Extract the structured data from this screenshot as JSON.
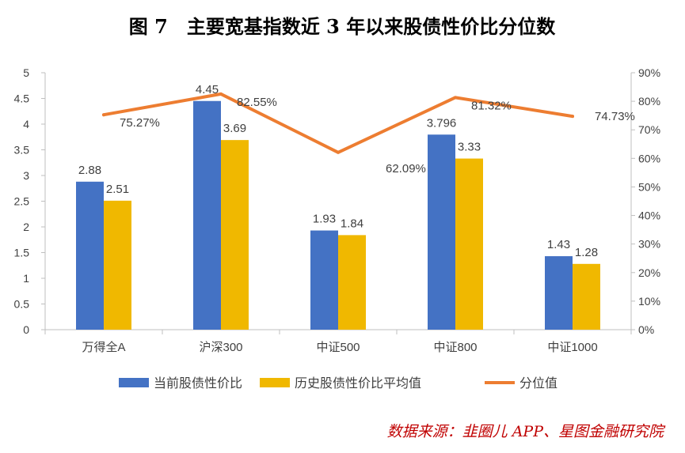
{
  "chart_data": {
    "type": "bar",
    "title": "图 7　主要宽基指数近 3 年以来股债性价比分位数",
    "categories": [
      "万得全A",
      "沪深300",
      "中证500",
      "中证800",
      "中证1000"
    ],
    "series": [
      {
        "name": "当前股债性价比",
        "kind": "bar",
        "axis": "left",
        "color": "#4472C4",
        "values": [
          2.88,
          4.45,
          1.93,
          3.796,
          1.43
        ],
        "labels": [
          "2.88",
          "4.45",
          "1.93",
          "3.796",
          "1.43"
        ]
      },
      {
        "name": "历史股债性价比平均值",
        "kind": "bar",
        "axis": "left",
        "color": "#F0B800",
        "values": [
          2.51,
          3.69,
          1.84,
          3.33,
          1.28
        ],
        "labels": [
          "2.51",
          "3.69",
          "1.84",
          "3.33",
          "1.28"
        ]
      },
      {
        "name": "分位值",
        "kind": "line",
        "axis": "right",
        "color": "#ED7D31",
        "values": [
          75.27,
          82.55,
          62.09,
          81.32,
          74.73
        ],
        "labels": [
          "75.27%",
          "82.55%",
          "62.09%",
          "81.32%",
          "74.73%"
        ]
      }
    ],
    "y_left": {
      "range": [
        0,
        5
      ],
      "ticks": [
        "0",
        "0.5",
        "1",
        "1.5",
        "2",
        "2.5",
        "3",
        "3.5",
        "4",
        "4.5",
        "5"
      ]
    },
    "y_right": {
      "range": [
        0,
        90
      ],
      "ticks": [
        "0%",
        "10%",
        "20%",
        "30%",
        "40%",
        "50%",
        "60%",
        "70%",
        "80%",
        "90%"
      ]
    },
    "grid": false,
    "legend_position": "bottom"
  },
  "source": "数据来源：韭圈儿 APP、星图金融研究院",
  "colors": {
    "source_text": "#C00000",
    "axis": "#BFBFBF",
    "text": "#404040"
  }
}
